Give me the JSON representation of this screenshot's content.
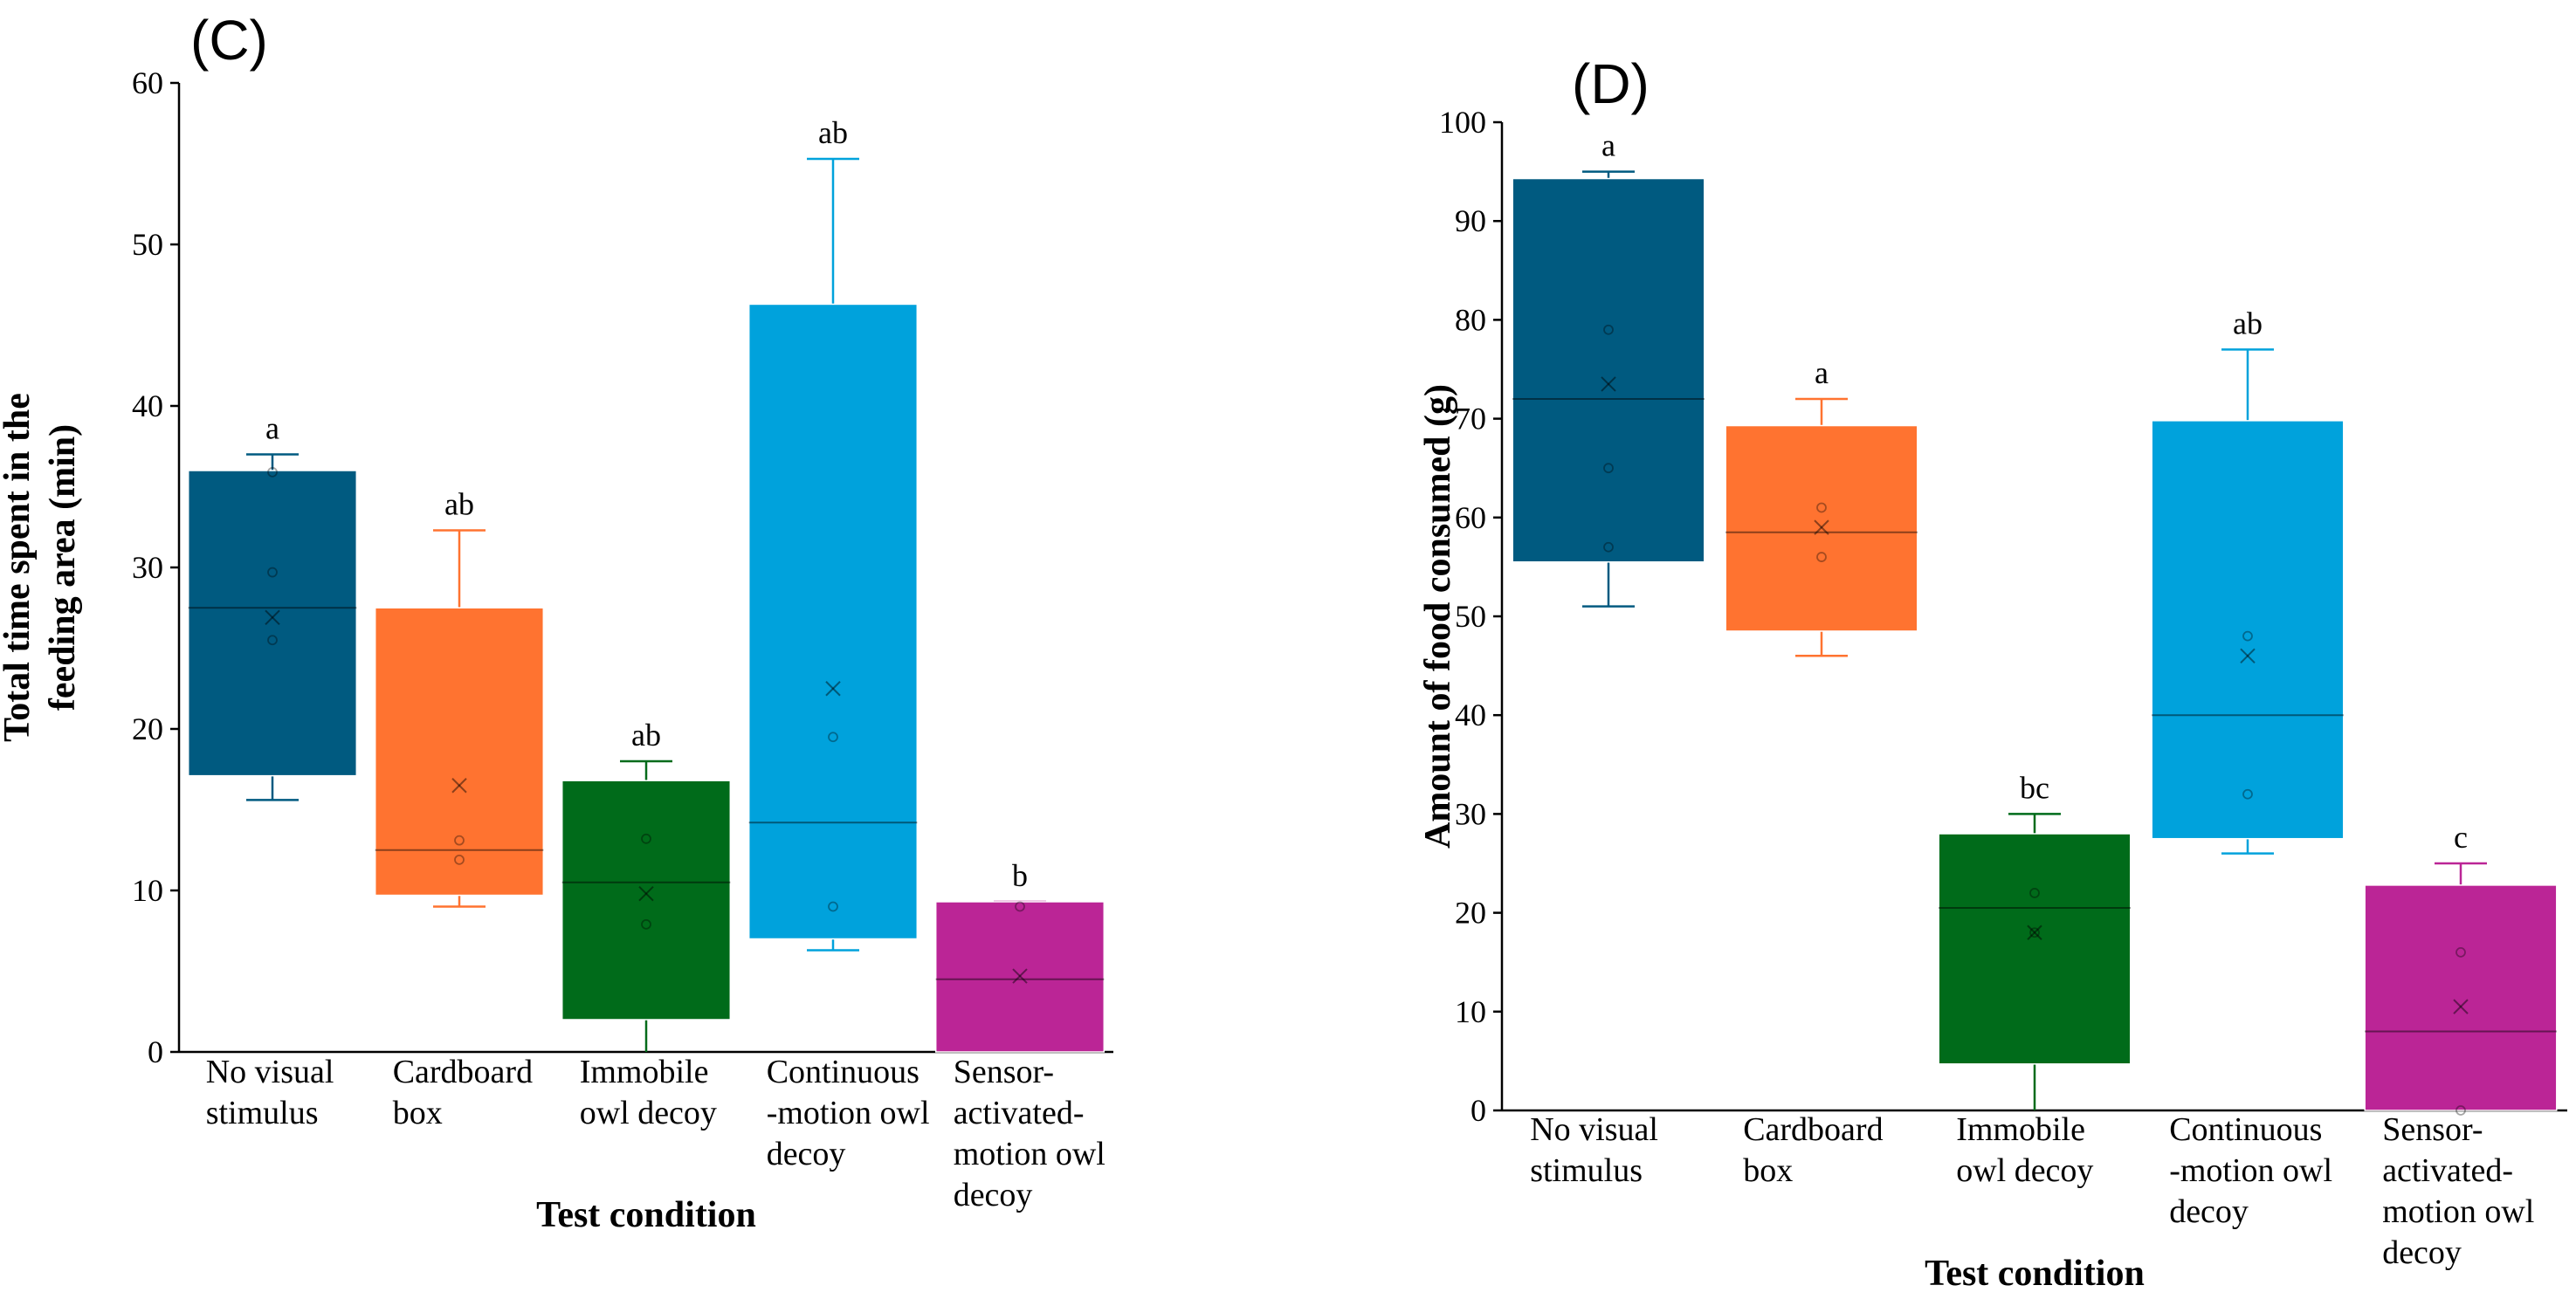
{
  "chart_data": [
    {
      "type": "box",
      "panel_label": "(C)",
      "xlabel": "Test condition",
      "ylabel_lines": [
        "Total time spent in the",
        "feeding area (min)"
      ],
      "ylim": [
        0,
        60
      ],
      "yticks": [
        0,
        10,
        20,
        30,
        40,
        50,
        60
      ],
      "categories": [
        [
          "No visual",
          "stimulus"
        ],
        [
          "Cardboard",
          "box"
        ],
        [
          "Immobile",
          "owl decoy"
        ],
        [
          "Continuous",
          "-motion owl",
          "decoy"
        ],
        [
          "Sensor-",
          "activated-",
          "motion owl",
          "decoy"
        ]
      ],
      "boxes": [
        {
          "color": "#005a80",
          "whisker_low": 15.6,
          "q1": 17.1,
          "median": 27.5,
          "q3": 36.0,
          "whisker_high": 37.0,
          "mean": 26.9,
          "points": [
            25.5,
            29.7,
            35.9
          ],
          "letter": "a"
        },
        {
          "color": "#ff7330",
          "whisker_low": 9.0,
          "q1": 9.7,
          "median": 12.5,
          "q3": 27.5,
          "whisker_high": 32.3,
          "mean": 16.5,
          "points": [
            11.9,
            13.1
          ],
          "letter": "ab"
        },
        {
          "color": "#006b1a",
          "whisker_low": 0,
          "q1": 2.0,
          "median": 10.5,
          "q3": 16.8,
          "whisker_high": 18.0,
          "mean": 9.8,
          "points": [
            7.9,
            13.2
          ],
          "letter": "ab"
        },
        {
          "color": "#00a2dc",
          "whisker_low": 6.3,
          "q1": 7.0,
          "median": 14.2,
          "q3": 46.3,
          "whisker_high": 55.3,
          "mean": 22.5,
          "points": [
            9.0,
            19.5
          ],
          "letter": "ab"
        },
        {
          "color": "#bb2596",
          "whisker_low": 0,
          "q1": 0,
          "median": 4.5,
          "q3": 9.3,
          "whisker_high": 9.3,
          "mean": 4.7,
          "points": [
            9.0
          ],
          "letter": "b"
        }
      ]
    },
    {
      "type": "box",
      "panel_label": "(D)",
      "xlabel": "Test condition",
      "ylabel_lines": [
        "Amount of food consumed (g)"
      ],
      "ylim": [
        0,
        100
      ],
      "yticks": [
        0,
        10,
        20,
        30,
        40,
        50,
        60,
        70,
        80,
        90,
        100
      ],
      "categories": [
        [
          "No visual",
          "stimulus"
        ],
        [
          "Cardboard",
          "box"
        ],
        [
          "Immobile",
          "owl decoy"
        ],
        [
          "Continuous",
          "-motion owl",
          "decoy"
        ],
        [
          "Sensor-",
          "activated-",
          "motion owl",
          "decoy"
        ]
      ],
      "boxes": [
        {
          "color": "#005a80",
          "whisker_low": 51.0,
          "q1": 55.5,
          "median": 72.0,
          "q3": 94.3,
          "whisker_high": 95.0,
          "mean": 73.5,
          "points": [
            57.0,
            65.0,
            79.0
          ],
          "letter": "a"
        },
        {
          "color": "#ff7330",
          "whisker_low": 46.0,
          "q1": 48.5,
          "median": 58.5,
          "q3": 69.3,
          "whisker_high": 72.0,
          "mean": 59.0,
          "points": [
            56.0,
            61.0
          ],
          "letter": "a"
        },
        {
          "color": "#006b1a",
          "whisker_low": 0,
          "q1": 4.7,
          "median": 20.5,
          "q3": 28.0,
          "whisker_high": 30.0,
          "mean": 18.0,
          "points": [
            18.0,
            22.0
          ],
          "letter": "bc"
        },
        {
          "color": "#00a2dc",
          "whisker_low": 26.0,
          "q1": 27.5,
          "median": 40.0,
          "q3": 69.8,
          "whisker_high": 77.0,
          "mean": 46.0,
          "points": [
            32.0,
            48.0
          ],
          "letter": "ab"
        },
        {
          "color": "#bb2596",
          "whisker_low": 0,
          "q1": 0,
          "median": 8.0,
          "q3": 22.8,
          "whisker_high": 25.0,
          "mean": 10.5,
          "points": [
            0,
            16.0
          ],
          "letter": "c"
        }
      ]
    }
  ]
}
